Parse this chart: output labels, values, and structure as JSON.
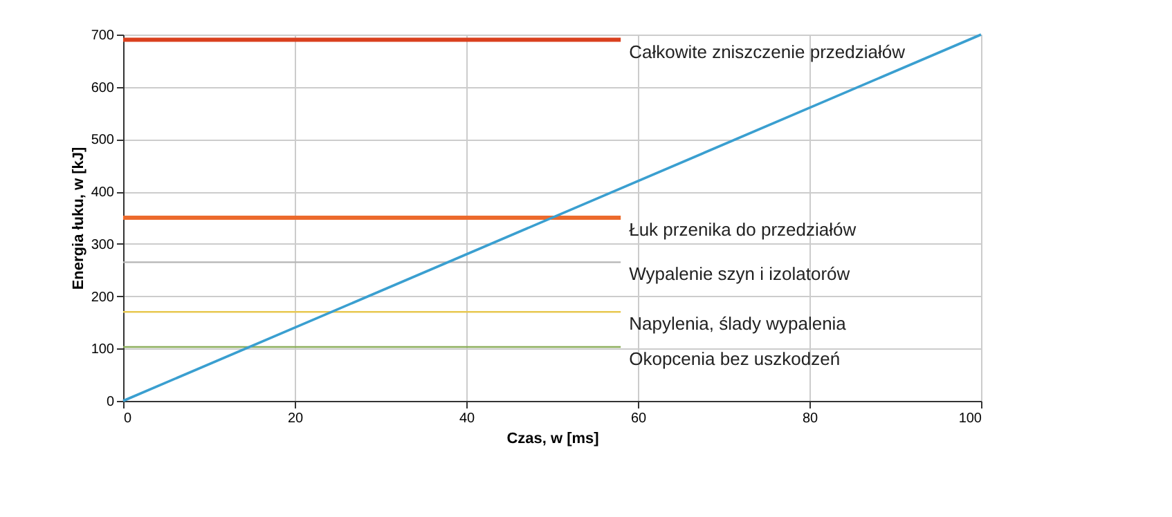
{
  "chart_data": {
    "type": "line",
    "xlabel": "Czas, w [ms]",
    "ylabel": "Energia łuku, w [kJ]",
    "xlim": [
      0,
      100
    ],
    "ylim": [
      0,
      700
    ],
    "xticks": [
      0,
      20,
      40,
      60,
      80,
      100
    ],
    "yticks": [
      0,
      100,
      200,
      300,
      400,
      500,
      600,
      700
    ],
    "grid": true,
    "series": [
      {
        "name": "Całkowite zniszczenie przedziałów",
        "color": "#d9401e",
        "x": [
          0,
          58
        ],
        "values": [
          690,
          690
        ]
      },
      {
        "name": "Łuk przenika do przedziałów",
        "color": "#ec6a2c",
        "x": [
          0,
          58
        ],
        "values": [
          350,
          350
        ]
      },
      {
        "name": "Wypalenie szyn i izolatorów",
        "color": "#b4b4b4",
        "x": [
          0,
          58
        ],
        "values": [
          265,
          265
        ]
      },
      {
        "name": "Napylenia, ślady wypalenia",
        "color": "#e8c850",
        "x": [
          0,
          58
        ],
        "values": [
          170,
          170
        ]
      },
      {
        "name": "Okopcenia bez uszkodzeń",
        "color": "#8cae5c",
        "x": [
          0,
          58
        ],
        "values": [
          103,
          103
        ]
      },
      {
        "color": "#3a9fd0",
        "x": [
          0,
          100
        ],
        "values": [
          0,
          700
        ]
      }
    ]
  }
}
